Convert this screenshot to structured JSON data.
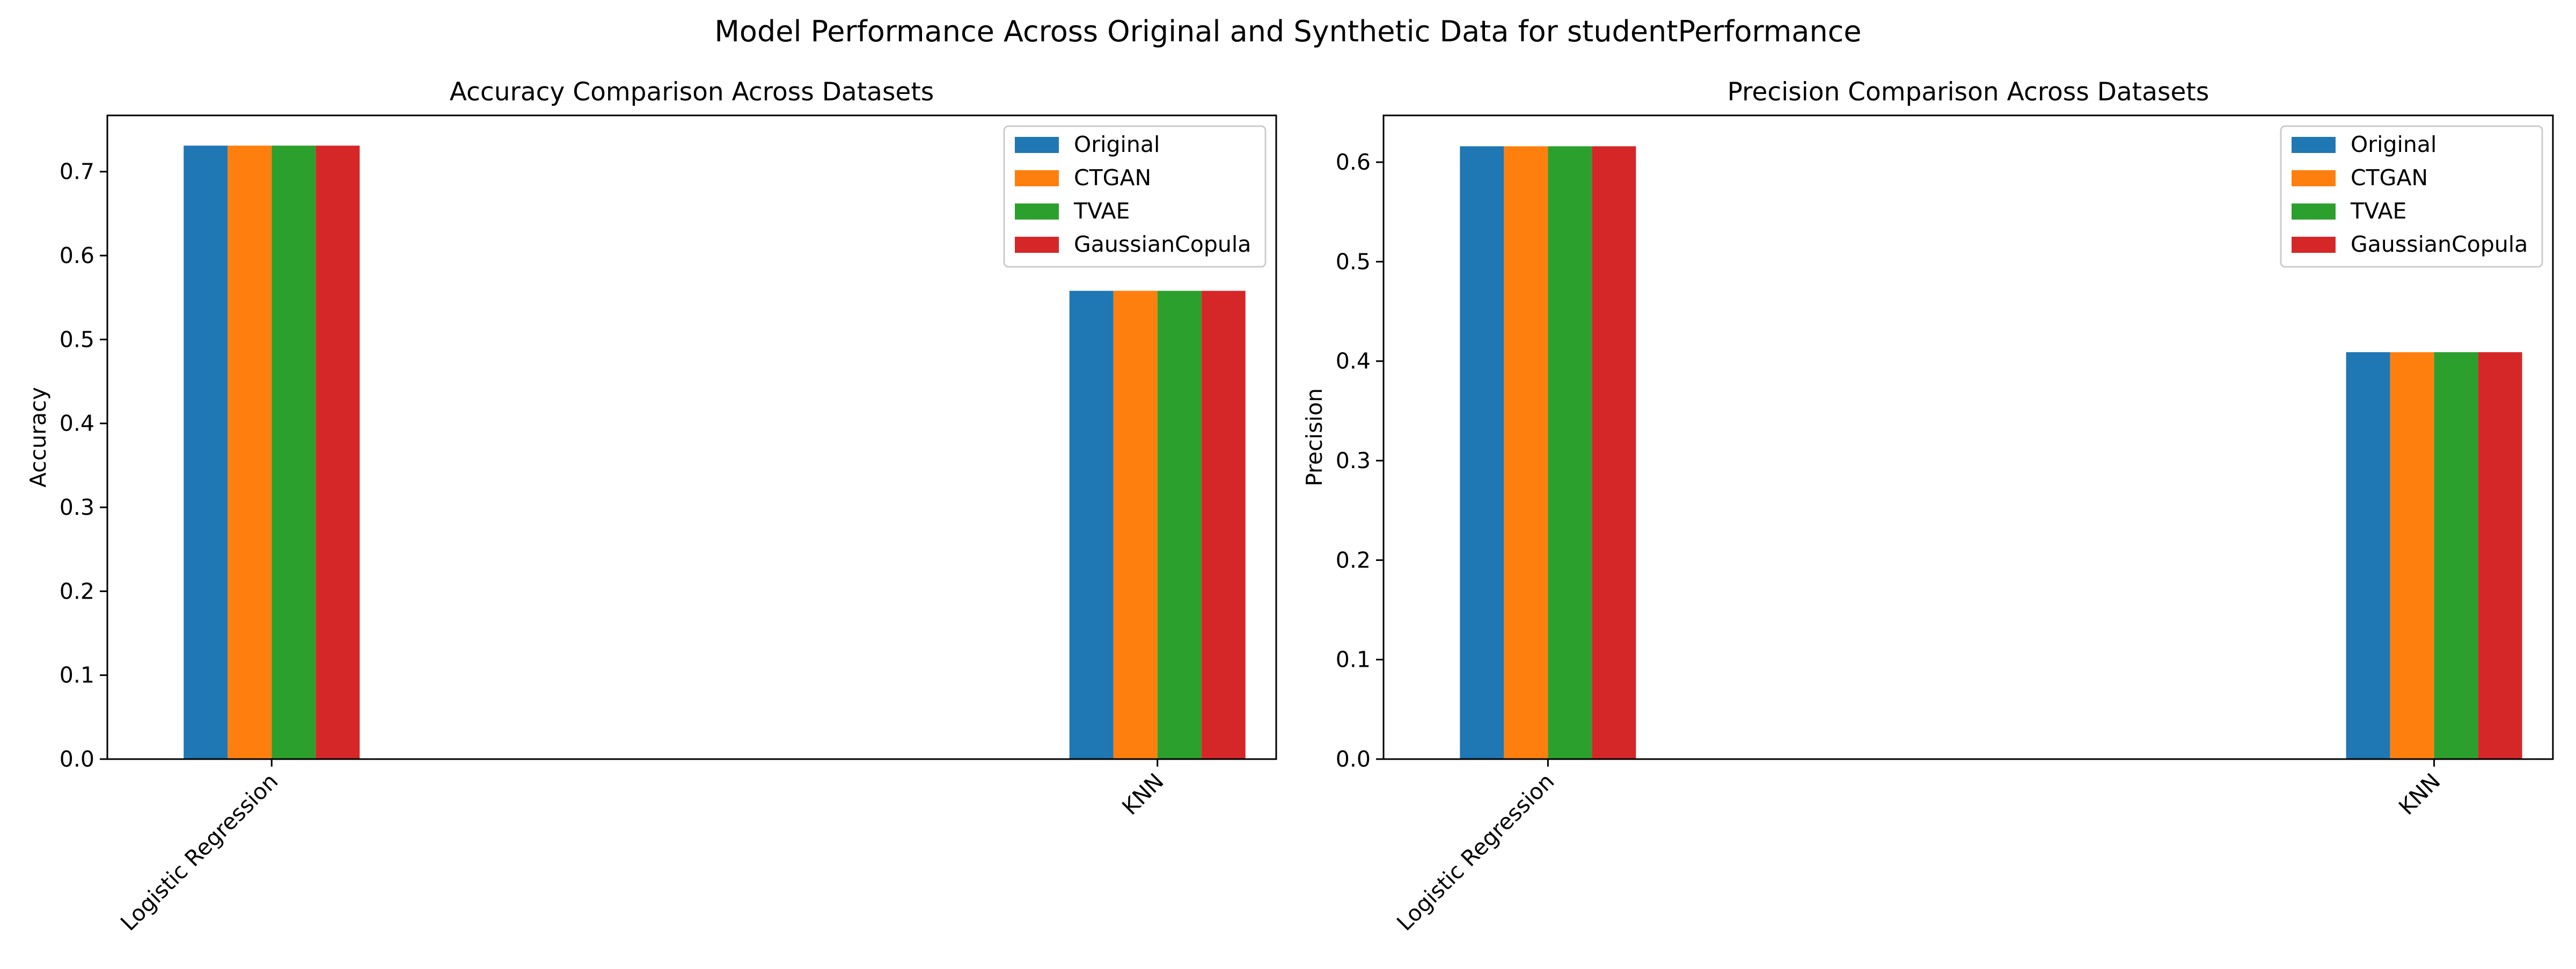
{
  "figure": {
    "suptitle": "Model Performance Across Original and Synthetic Data for studentPerformance"
  },
  "chart_data": [
    {
      "type": "bar",
      "title": "Accuracy Comparison Across Datasets",
      "xlabel": "",
      "ylabel": "Accuracy",
      "categories": [
        "Logistic Regression",
        "KNN"
      ],
      "ylim": [
        0,
        0.767
      ],
      "yticks": [
        0.0,
        0.1,
        0.2,
        0.3,
        0.4,
        0.5,
        0.6,
        0.7
      ],
      "ytick_labels": [
        "0.0",
        "0.1",
        "0.2",
        "0.3",
        "0.4",
        "0.5",
        "0.6",
        "0.7"
      ],
      "grid": false,
      "legend": "top-right",
      "series": [
        {
          "name": "Original",
          "color": "#1f77b4",
          "values": [
            0.731,
            0.558
          ]
        },
        {
          "name": "CTGAN",
          "color": "#ff7f0e",
          "values": [
            0.731,
            0.558
          ]
        },
        {
          "name": "TVAE",
          "color": "#2ca02c",
          "values": [
            0.731,
            0.558
          ]
        },
        {
          "name": "GaussianCopula",
          "color": "#d62728",
          "values": [
            0.731,
            0.558
          ]
        }
      ]
    },
    {
      "type": "bar",
      "title": "Precision Comparison Across Datasets",
      "xlabel": "",
      "ylabel": "Precision",
      "categories": [
        "Logistic Regression",
        "KNN"
      ],
      "ylim": [
        0,
        0.647
      ],
      "yticks": [
        0.0,
        0.1,
        0.2,
        0.3,
        0.4,
        0.5,
        0.6
      ],
      "ytick_labels": [
        "0.0",
        "0.1",
        "0.2",
        "0.3",
        "0.4",
        "0.5",
        "0.6"
      ],
      "grid": false,
      "legend": "top-right",
      "series": [
        {
          "name": "Original",
          "color": "#1f77b4",
          "values": [
            0.616,
            0.409
          ]
        },
        {
          "name": "CTGAN",
          "color": "#ff7f0e",
          "values": [
            0.616,
            0.409
          ]
        },
        {
          "name": "TVAE",
          "color": "#2ca02c",
          "values": [
            0.616,
            0.409
          ]
        },
        {
          "name": "GaussianCopula",
          "color": "#d62728",
          "values": [
            0.616,
            0.409
          ]
        }
      ]
    }
  ]
}
